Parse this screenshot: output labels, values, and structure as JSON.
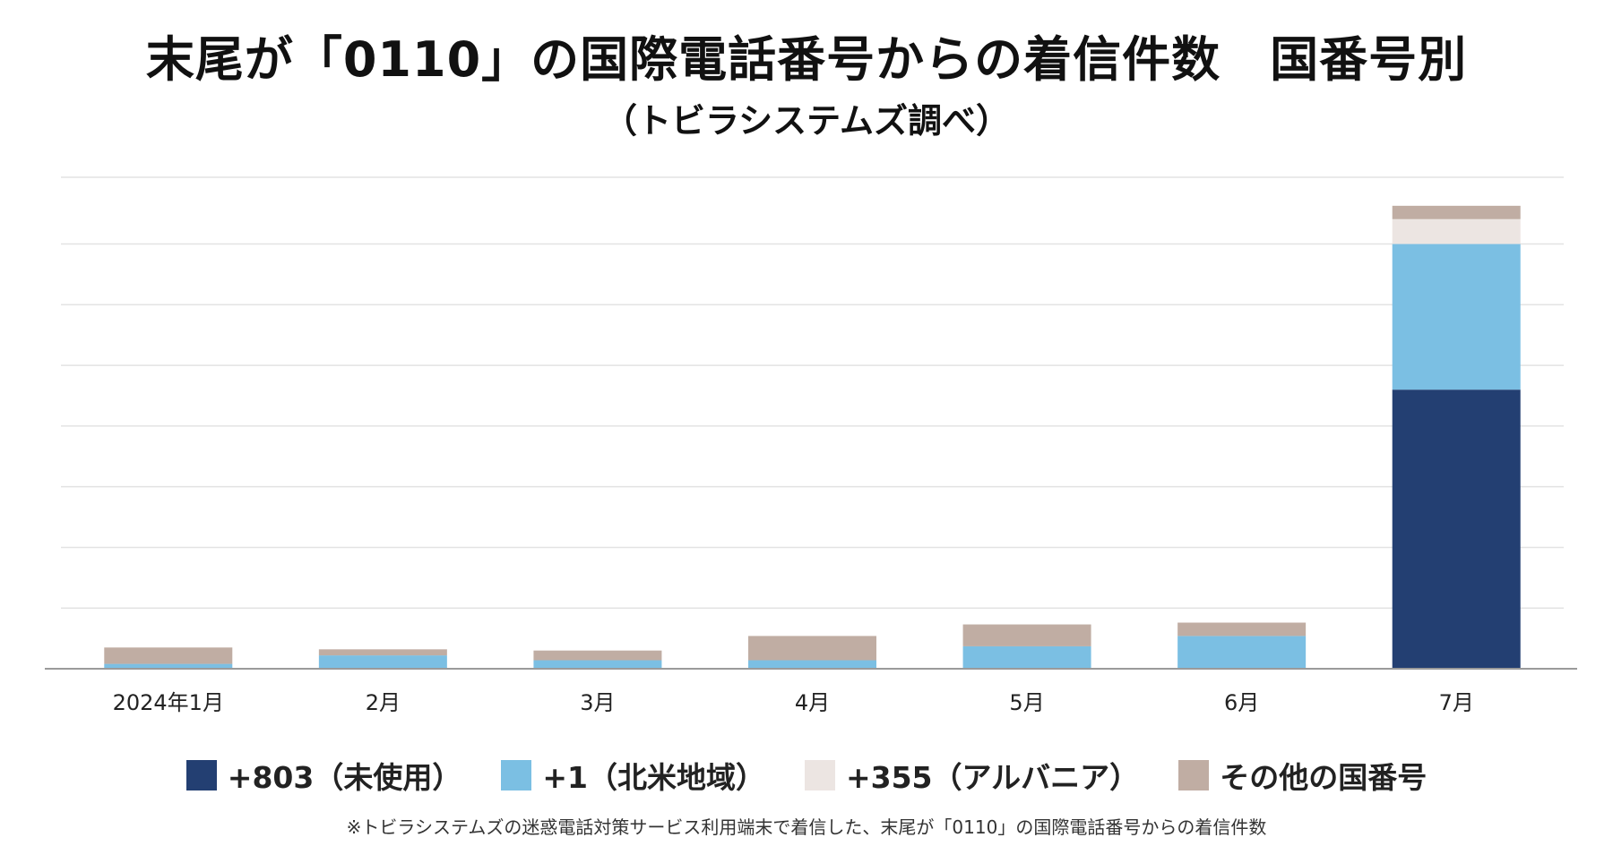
{
  "colors": {
    "grid": "#e3e3e3",
    "axis": "#9a9a9a",
    "series": [
      "#233f72",
      "#7bbfe3",
      "#ece5e2",
      "#c0ada3"
    ]
  },
  "chart_data": {
    "type": "bar",
    "stacked": true,
    "title": "末尾が「0110」の国際電話番号からの着信件数　国番号別",
    "subtitle": "（トビラシステムズ調べ）",
    "categories": [
      "2024年1月",
      "2月",
      "3月",
      "4月",
      "5月",
      "6月",
      "7月"
    ],
    "series": [
      {
        "name": "+803（未使用）",
        "values": [
          0,
          0,
          0,
          0,
          0,
          0,
          4.6
        ]
      },
      {
        "name": "+1（北米地域）",
        "values": [
          0.08,
          0.22,
          0.14,
          0.14,
          0.37,
          0.54,
          2.4
        ]
      },
      {
        "name": "+355（アルバニア）",
        "values": [
          0,
          0,
          0,
          0,
          0,
          0,
          0.41
        ]
      },
      {
        "name": "その他の国番号",
        "values": [
          0.27,
          0.1,
          0.16,
          0.4,
          0.36,
          0.22,
          0.22
        ]
      }
    ],
    "ylim": [
      0,
      8.1
    ],
    "gridlines": [
      1,
      2,
      3,
      4,
      5,
      6,
      7,
      8.1
    ],
    "grid": true,
    "y_tick_labels": false,
    "legend_position": "bottom",
    "footnote": "※トビラシステムズの迷惑電話対策サービス利用端末で着信した、末尾が「0110」の国際電話番号からの着信件数"
  }
}
